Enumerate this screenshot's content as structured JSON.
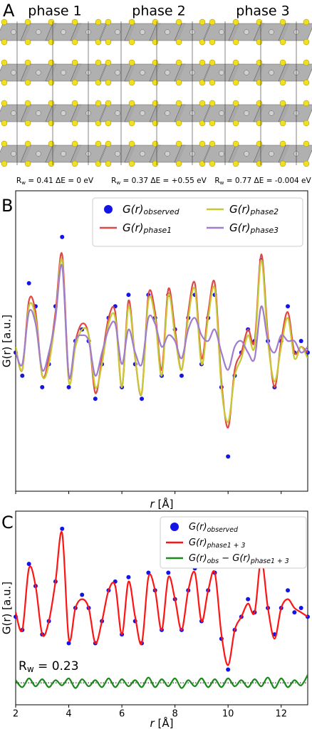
{
  "panel_a": {
    "label": "A",
    "phases": [
      {
        "title": "phase 1",
        "cap_pre": "R",
        "cap_sub": "w",
        "cap_post": " = 0.41   ΔE = 0 eV"
      },
      {
        "title": "phase 2",
        "cap_pre": "R",
        "cap_sub": "w",
        "cap_post": " = 0.37   ΔE = +0.55 eV"
      },
      {
        "title": "phase 3",
        "cap_pre": "R",
        "cap_sub": "w",
        "cap_post": " = 0.77   ΔE = -0.004 eV"
      }
    ]
  },
  "chart_data": [
    {
      "type": "line",
      "label": "B",
      "ylabel": "G(r) [a.u.]",
      "xlabel_var": "r",
      "xlabel_unit": " [Å]",
      "xlim": [
        2,
        13
      ],
      "ylim": [
        -1.2,
        1.4
      ],
      "xticks": [
        2,
        4,
        6,
        8,
        10,
        12
      ],
      "legend": "upper right",
      "x": [
        2,
        2.25,
        2.5,
        2.75,
        3,
        3.25,
        3.5,
        3.75,
        4,
        4.25,
        4.5,
        4.75,
        5,
        5.25,
        5.5,
        5.75,
        6,
        6.25,
        6.5,
        6.75,
        7,
        7.25,
        7.5,
        7.75,
        8,
        8.25,
        8.5,
        8.75,
        9,
        9.25,
        9.5,
        9.75,
        10,
        10.25,
        10.5,
        10.75,
        11,
        11.25,
        11.5,
        11.75,
        12,
        12.25,
        12.5,
        12.75,
        13
      ],
      "series": [
        {
          "name": "G(r)",
          "sub": "observed",
          "style": "dots",
          "color": "#1414e6",
          "values": [
            0,
            -0.2,
            0.6,
            0.4,
            -0.3,
            -0.1,
            0.4,
            1.0,
            -0.3,
            0.1,
            0.2,
            0.1,
            -0.4,
            -0.1,
            0.3,
            0.4,
            -0.3,
            0.5,
            -0.1,
            -0.4,
            0.5,
            0.3,
            -0.2,
            0.5,
            0.2,
            -0.2,
            0.3,
            0.5,
            -0.1,
            0.3,
            0.5,
            -0.3,
            -0.9,
            -0.2,
            0,
            0.2,
            0.1,
            0.8,
            0.1,
            -0.3,
            0.1,
            0.4,
            0,
            0.1,
            0
          ]
        },
        {
          "name": "G(r)",
          "sub": "phase1",
          "style": "line",
          "color": "#e04848",
          "values": [
            0.05,
            -0.15,
            0.45,
            0.35,
            -0.2,
            -0.05,
            0.35,
            0.85,
            -0.2,
            0.1,
            0.25,
            0.15,
            -0.35,
            -0.05,
            0.3,
            0.35,
            -0.3,
            0.45,
            -0.05,
            -0.35,
            0.5,
            0.35,
            -0.15,
            0.55,
            0.2,
            -0.15,
            0.35,
            0.6,
            -0.05,
            0.35,
            0.6,
            -0.25,
            -0.65,
            -0.15,
            0,
            0.2,
            0.1,
            0.85,
            0.15,
            -0.3,
            0.1,
            0.35,
            0,
            0.05,
            0
          ]
        },
        {
          "name": "G(r)",
          "sub": "phase2",
          "style": "line",
          "color": "#c8c832",
          "values": [
            0.05,
            -0.15,
            0.4,
            0.3,
            -0.2,
            -0.1,
            0.3,
            0.8,
            -0.25,
            0.05,
            0.2,
            0.15,
            -0.3,
            -0.1,
            0.25,
            0.3,
            -0.3,
            0.4,
            -0.05,
            -0.35,
            0.45,
            0.3,
            -0.2,
            0.5,
            0.15,
            -0.15,
            0.3,
            0.55,
            -0.1,
            0.3,
            0.55,
            -0.3,
            -0.6,
            -0.2,
            -0.05,
            0.15,
            0.05,
            0.8,
            0.1,
            -0.25,
            0.05,
            0.3,
            -0.05,
            0.05,
            -0.05
          ]
        },
        {
          "name": "G(r)",
          "sub": "phase3",
          "style": "line",
          "color": "#a27ccc",
          "values": [
            0,
            -0.1,
            0.35,
            0.25,
            -0.15,
            0,
            0.3,
            0.75,
            -0.2,
            0.1,
            0.15,
            0.1,
            -0.2,
            0,
            0.2,
            0.25,
            -0.1,
            0.2,
            0,
            -0.1,
            0.3,
            0.25,
            0.05,
            0.15,
            0.1,
            -0.05,
            0.2,
            0.3,
            0.15,
            0.1,
            0.2,
            0,
            -0.15,
            0.05,
            0.1,
            0,
            -0.05,
            0.4,
            0.1,
            0,
            0.15,
            0.1,
            0.1,
            0,
            0.05
          ]
        }
      ]
    },
    {
      "type": "line",
      "label": "C",
      "ylabel": "G(r) [a.u.]",
      "xlabel_var": "r",
      "xlabel_unit": " [Å]",
      "xlim": [
        2,
        13
      ],
      "ylim": [
        -1.0,
        1.2
      ],
      "xticks": [
        2,
        4,
        6,
        8,
        10,
        12
      ],
      "legend": "upper right",
      "tick_labels": true,
      "annotation_pre": "R",
      "annotation_sub": "w",
      "annotation_post": " = 0.23",
      "difference_offset": -0.75,
      "x": [
        2,
        2.25,
        2.5,
        2.75,
        3,
        3.25,
        3.5,
        3.75,
        4,
        4.25,
        4.5,
        4.75,
        5,
        5.25,
        5.5,
        5.75,
        6,
        6.25,
        6.5,
        6.75,
        7,
        7.25,
        7.5,
        7.75,
        8,
        8.25,
        8.5,
        8.75,
        9,
        9.25,
        9.5,
        9.75,
        10,
        10.25,
        10.5,
        10.75,
        11,
        11.25,
        11.5,
        11.75,
        12,
        12.25,
        12.5,
        12.75,
        13
      ],
      "series": [
        {
          "name": "G(r)",
          "sub": "observed",
          "style": "dots",
          "color": "#1414e6",
          "values": [
            0,
            -0.15,
            0.6,
            0.35,
            -0.2,
            -0.05,
            0.4,
            1.0,
            -0.3,
            0.1,
            0.25,
            0.1,
            -0.3,
            -0.05,
            0.3,
            0.4,
            -0.2,
            0.45,
            -0.05,
            -0.3,
            0.5,
            0.3,
            -0.15,
            0.5,
            0.2,
            -0.15,
            0.3,
            0.55,
            -0.05,
            0.3,
            0.5,
            -0.25,
            -0.6,
            -0.15,
            0,
            0.2,
            0.05,
            0.7,
            0.1,
            -0.2,
            0.1,
            0.3,
            0.05,
            0.1,
            0
          ]
        },
        {
          "name": "G(r)",
          "sub": "phase1 + 3",
          "style": "line",
          "color": "#ff1414",
          "values": [
            0.05,
            -0.15,
            0.55,
            0.35,
            -0.2,
            -0.05,
            0.4,
            0.95,
            -0.25,
            0.1,
            0.2,
            0.1,
            -0.3,
            -0.05,
            0.3,
            0.35,
            -0.2,
            0.4,
            0,
            -0.3,
            0.45,
            0.3,
            -0.15,
            0.45,
            0.2,
            -0.15,
            0.3,
            0.5,
            -0.05,
            0.3,
            0.5,
            -0.2,
            -0.55,
            -0.15,
            0,
            0.15,
            0.05,
            0.65,
            0.1,
            -0.25,
            0.1,
            0.2,
            0.1,
            0.05,
            0
          ]
        },
        {
          "name": "G(r)",
          "sub": "obs",
          "name2": " − G(r)",
          "sub2": "phase1 + 3",
          "style": "line",
          "color": "#1a8a1a",
          "values": [
            -0.72,
            -0.8,
            -0.7,
            -0.79,
            -0.71,
            -0.8,
            -0.72,
            -0.78,
            -0.7,
            -0.81,
            -0.71,
            -0.79,
            -0.72,
            -0.8,
            -0.7,
            -0.8,
            -0.71,
            -0.79,
            -0.72,
            -0.8,
            -0.69,
            -0.8,
            -0.71,
            -0.79,
            -0.7,
            -0.81,
            -0.72,
            -0.79,
            -0.7,
            -0.8,
            -0.71,
            -0.8,
            -0.7,
            -0.79,
            -0.72,
            -0.8,
            -0.71,
            -0.79,
            -0.69,
            -0.81,
            -0.7,
            -0.8,
            -0.72,
            -0.78,
            -0.66
          ]
        }
      ]
    }
  ]
}
